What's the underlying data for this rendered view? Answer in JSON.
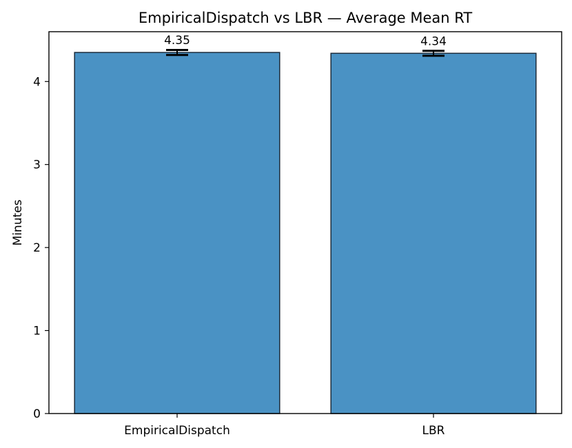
{
  "chart_data": {
    "type": "bar",
    "title": "EmpiricalDispatch vs LBR — Average Mean RT",
    "xlabel": "",
    "ylabel": "Minutes",
    "categories": [
      "EmpiricalDispatch",
      "LBR"
    ],
    "values": [
      4.35,
      4.34
    ],
    "value_labels": [
      "4.35",
      "4.34"
    ],
    "error": [
      0.03,
      0.03
    ],
    "ylim": [
      0,
      4.6
    ],
    "yticks": [
      0,
      1,
      2,
      3,
      4
    ],
    "ytick_labels": [
      "0",
      "1",
      "2",
      "3",
      "4"
    ],
    "grid": false,
    "legend": "none",
    "colors": {
      "bar_fill": "#4a92c4",
      "bar_edge": "#1a2a3a",
      "error_bar": "#000000",
      "axis": "#000000"
    }
  }
}
